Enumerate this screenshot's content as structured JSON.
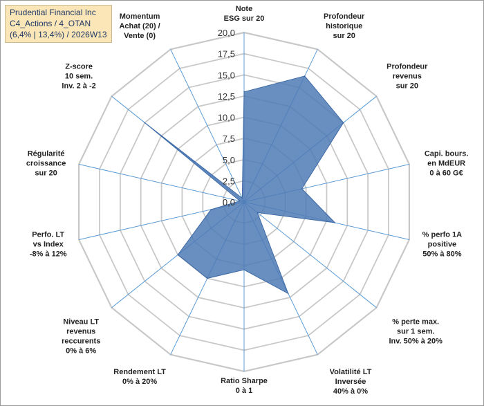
{
  "title_box": {
    "line1": "Prudential Financial Inc",
    "line2": "C4_Actions / 4_OTAN",
    "line3": "(6,4% | 13,4%) / 2026W13"
  },
  "chart_data": {
    "type": "radar",
    "rmin": 0,
    "rmax": 20,
    "ticks": [
      0,
      2.5,
      5,
      7.5,
      10,
      12.5,
      15,
      17.5,
      20
    ],
    "tick_labels": [
      "0,0",
      "2,5",
      "5,0",
      "7,5",
      "10,0",
      "12,5",
      "15,0",
      "17,5",
      "20,0"
    ],
    "axes": [
      [
        "Note",
        "ESG sur 20"
      ],
      [
        "Profondeur",
        "historique",
        "sur 20"
      ],
      [
        "Profondeur",
        "revenus",
        "sur 20"
      ],
      [
        "Capi. bours.",
        "en MdEUR",
        "0 à 60 G€"
      ],
      [
        "% perfo 1A",
        "positive",
        "50% à 80%"
      ],
      [
        "% perte max.",
        "sur 1 sem.",
        "Inv. 50% à 20%"
      ],
      [
        "Volatilité LT",
        "Inversée",
        "40% à 0%"
      ],
      [
        "Ratio Sharpe",
        "0 à 1"
      ],
      [
        "Rendement LT",
        "0% à 20%"
      ],
      [
        "Niveau LT",
        "revenus",
        "reccurents",
        "0% à 6%"
      ],
      [
        "Perfo. LT",
        "vs Index",
        "-8% à 12%"
      ],
      [
        "Régularité",
        "croissance",
        "sur 20"
      ],
      [
        "Z-score",
        "10 sem.",
        "Inv. 2 à -2"
      ],
      [
        "Momentum",
        "Achat (20) /",
        "Vente (0)"
      ]
    ],
    "values": [
      13.0,
      16.5,
      15.0,
      7.0,
      11.0,
      2.0,
      12.0,
      8.0,
      10.0,
      10.0,
      4.0,
      0.5,
      15.0,
      0.5
    ],
    "colors": {
      "fill": "#4f7ab5",
      "stroke": "#3d6aa6",
      "grid": "#c8c8c8",
      "spoke": "#5b9bd5"
    }
  }
}
